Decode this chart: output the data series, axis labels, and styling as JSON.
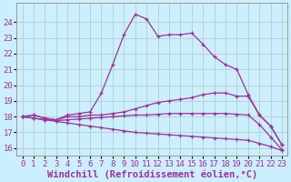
{
  "xlabel": "Windchill (Refroidissement éolien,°C)",
  "background_color": "#cceeff",
  "grid_color": "#aaccbb",
  "line_color": "#993399",
  "xlim": [
    -0.5,
    23.5
  ],
  "ylim": [
    15.5,
    25.2
  ],
  "xticks": [
    0,
    1,
    2,
    3,
    4,
    5,
    6,
    7,
    8,
    9,
    10,
    11,
    12,
    13,
    14,
    15,
    16,
    17,
    18,
    19,
    20,
    21,
    22,
    23
  ],
  "yticks": [
    16,
    17,
    18,
    19,
    20,
    21,
    22,
    23,
    24
  ],
  "curve_peak": [
    18.0,
    18.1,
    17.9,
    17.8,
    18.1,
    18.2,
    18.3,
    19.5,
    21.3,
    23.2,
    24.5,
    24.2,
    23.1,
    23.2,
    23.2,
    23.3,
    22.6,
    21.8,
    21.3,
    21.0,
    19.4,
    18.1,
    17.4,
    16.2
  ],
  "curve_mid_high": [
    18.0,
    18.1,
    17.9,
    17.8,
    18.0,
    18.0,
    18.1,
    18.1,
    18.2,
    18.3,
    18.5,
    18.7,
    18.9,
    19.0,
    19.1,
    19.2,
    19.4,
    19.5,
    19.5,
    19.3,
    19.3,
    18.1,
    17.4,
    16.2
  ],
  "curve_mid_flat": [
    18.0,
    17.9,
    17.8,
    17.75,
    17.8,
    17.85,
    17.9,
    17.95,
    18.0,
    18.05,
    18.1,
    18.1,
    18.15,
    18.2,
    18.2,
    18.2,
    18.2,
    18.2,
    18.2,
    18.15,
    18.1,
    17.5,
    16.7,
    15.9
  ],
  "curve_decline": [
    18.0,
    17.9,
    17.8,
    17.7,
    17.6,
    17.5,
    17.4,
    17.3,
    17.2,
    17.1,
    17.0,
    16.95,
    16.9,
    16.85,
    16.8,
    16.75,
    16.7,
    16.65,
    16.6,
    16.55,
    16.5,
    16.3,
    16.1,
    15.85
  ],
  "xlabel_fontsize": 7.5,
  "tick_fontsize": 6.5
}
